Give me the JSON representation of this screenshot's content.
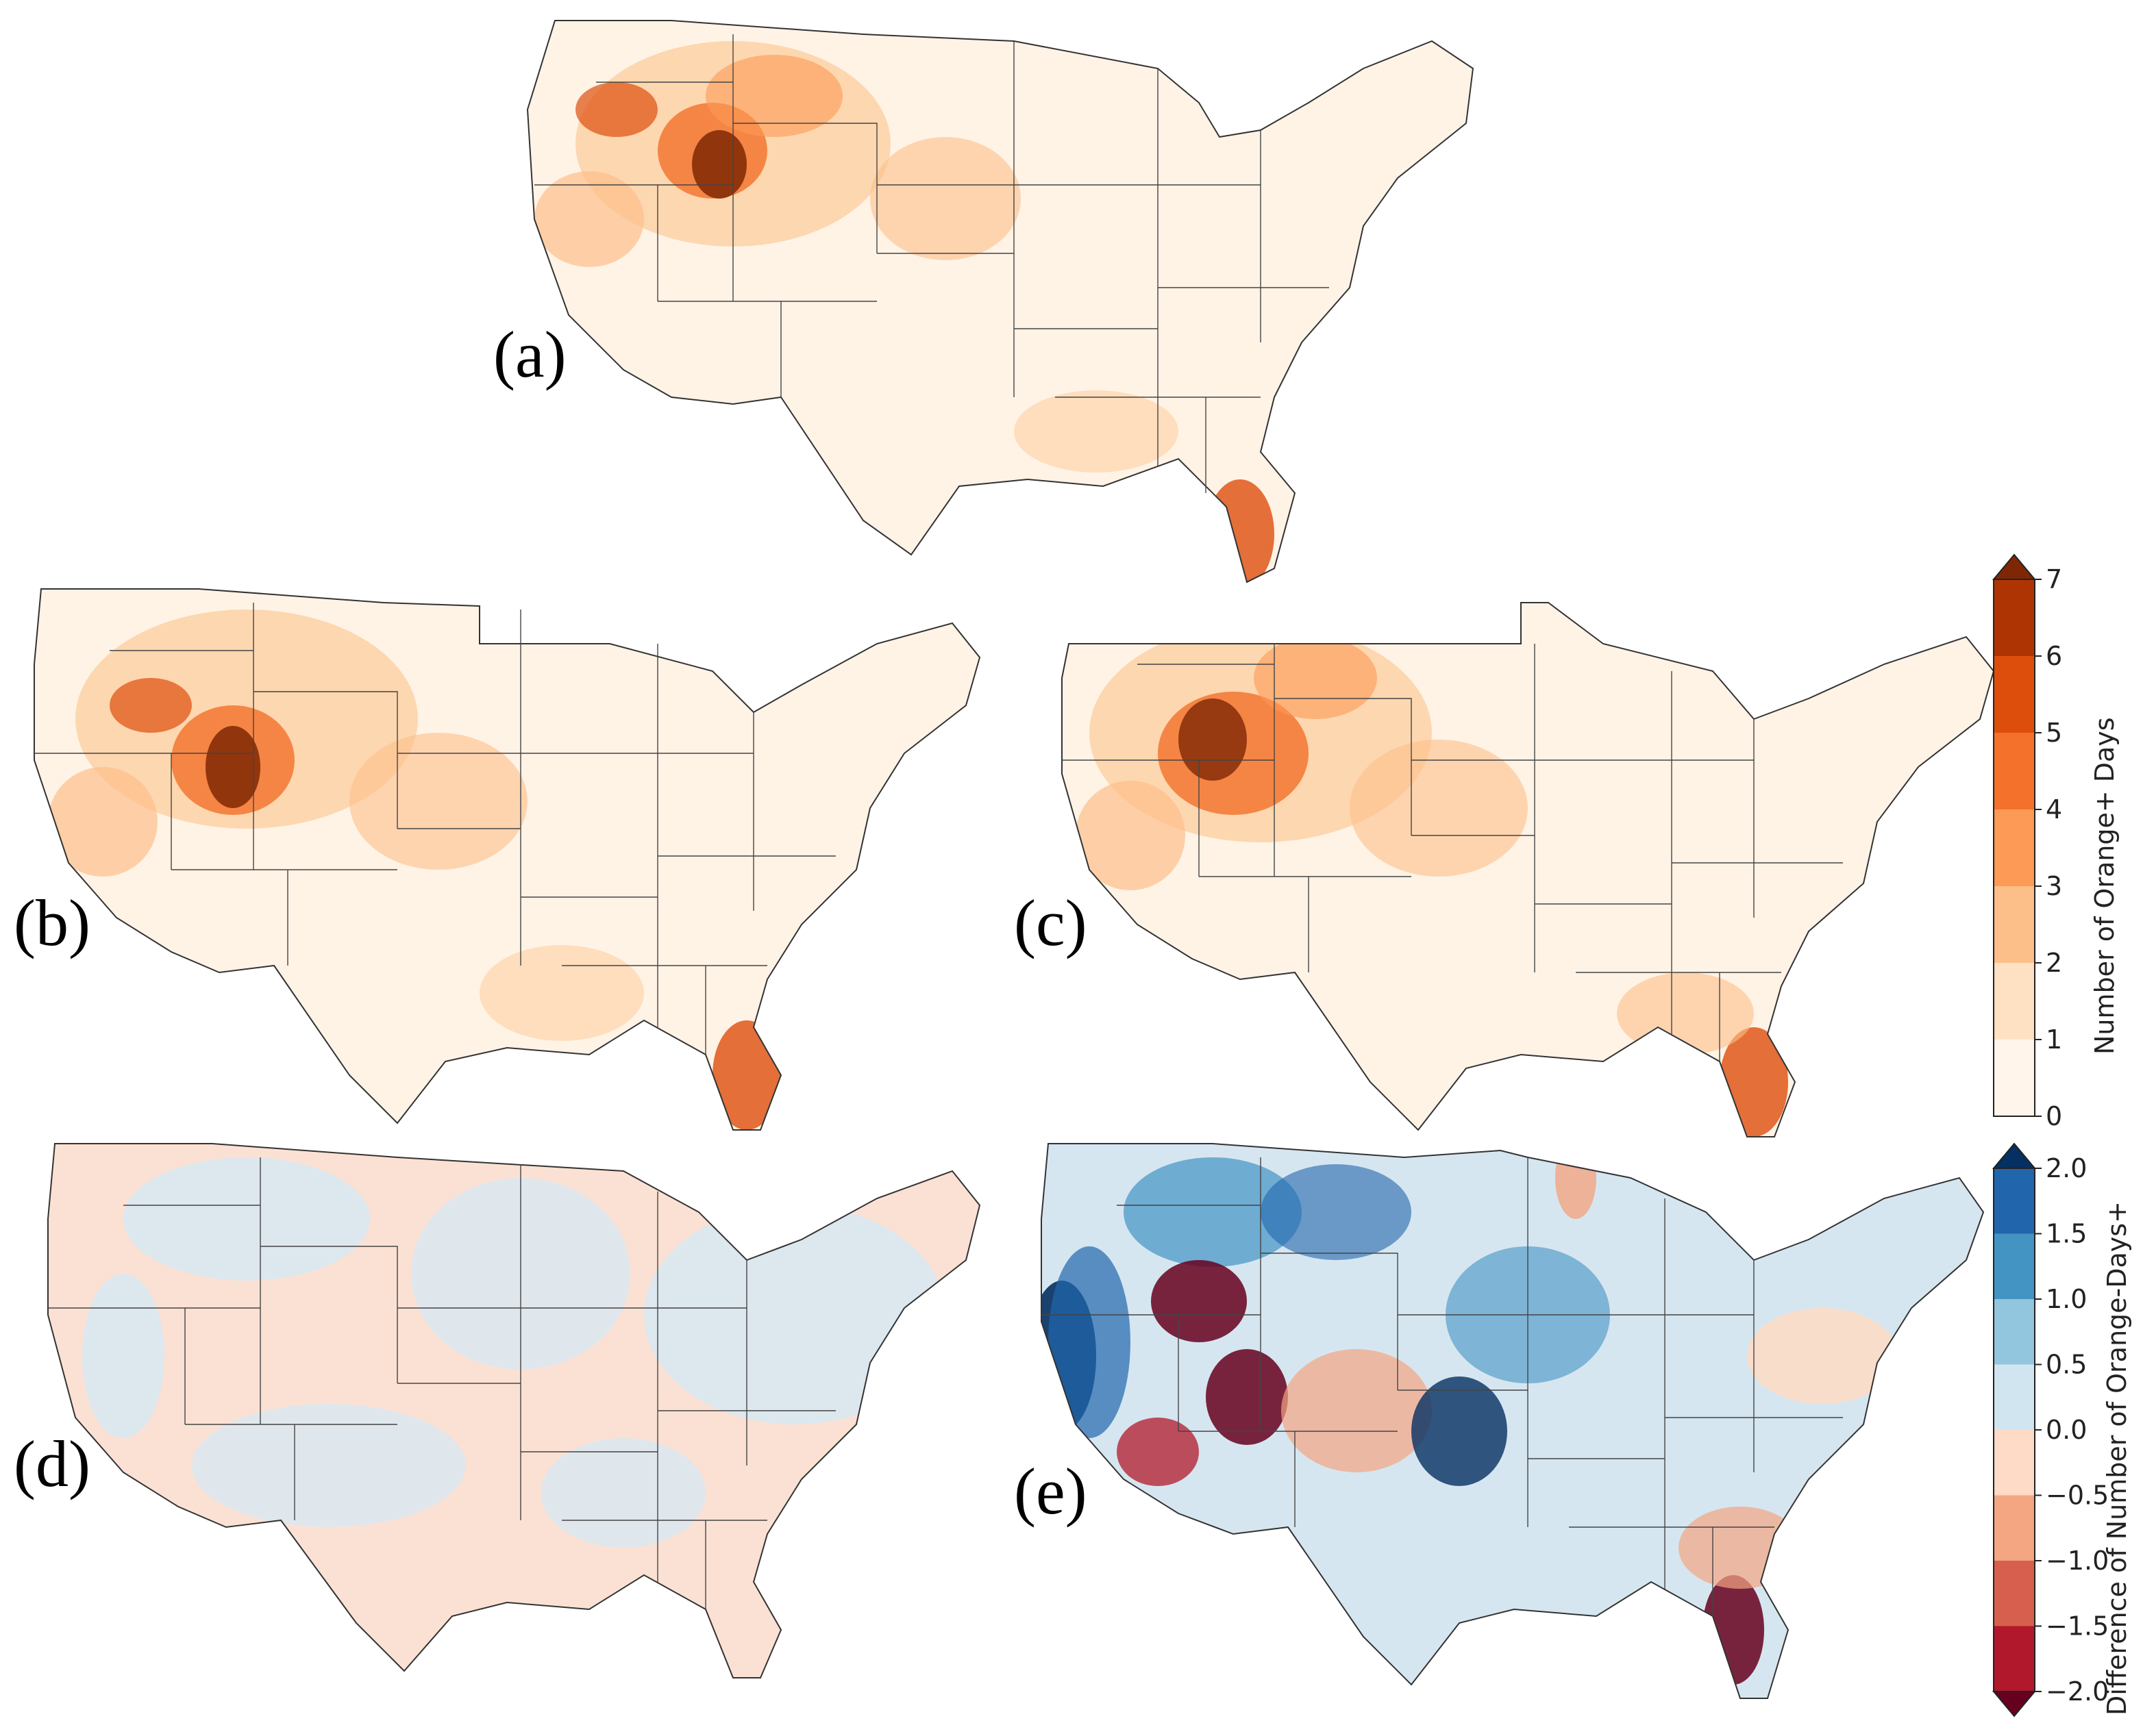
{
  "figure": {
    "panels": [
      {
        "id": "a",
        "label": "(a)",
        "scale": "orange"
      },
      {
        "id": "b",
        "label": "(b)",
        "scale": "orange"
      },
      {
        "id": "c",
        "label": "(c)",
        "scale": "orange"
      },
      {
        "id": "d",
        "label": "(d)",
        "scale": "diff"
      },
      {
        "id": "e",
        "label": "(e)",
        "scale": "diff"
      }
    ]
  },
  "colorbars": {
    "orange": {
      "title": "Number of Orange+ Days",
      "ticks": [
        "0",
        "1",
        "2",
        "3",
        "4",
        "5",
        "6",
        "7"
      ],
      "colors": [
        "#fff5eb",
        "#fee0c2",
        "#fdbf8a",
        "#fd9a55",
        "#f3712a",
        "#dd4e0d",
        "#ae3503",
        "#7f2704"
      ],
      "extend": "max"
    },
    "diff": {
      "title": "Difference of Number of Orange-Days+",
      "ticks": [
        "−2.0",
        "−1.5",
        "−1.0",
        "−0.5",
        "0.0",
        "0.5",
        "1.0",
        "1.5",
        "2.0"
      ],
      "colors": [
        "#67001f",
        "#b2182b",
        "#d6604d",
        "#f4a582",
        "#fddbc7",
        "#d1e5f0",
        "#92c5de",
        "#4393c3",
        "#2166ac",
        "#053061"
      ],
      "extend": "both"
    }
  }
}
